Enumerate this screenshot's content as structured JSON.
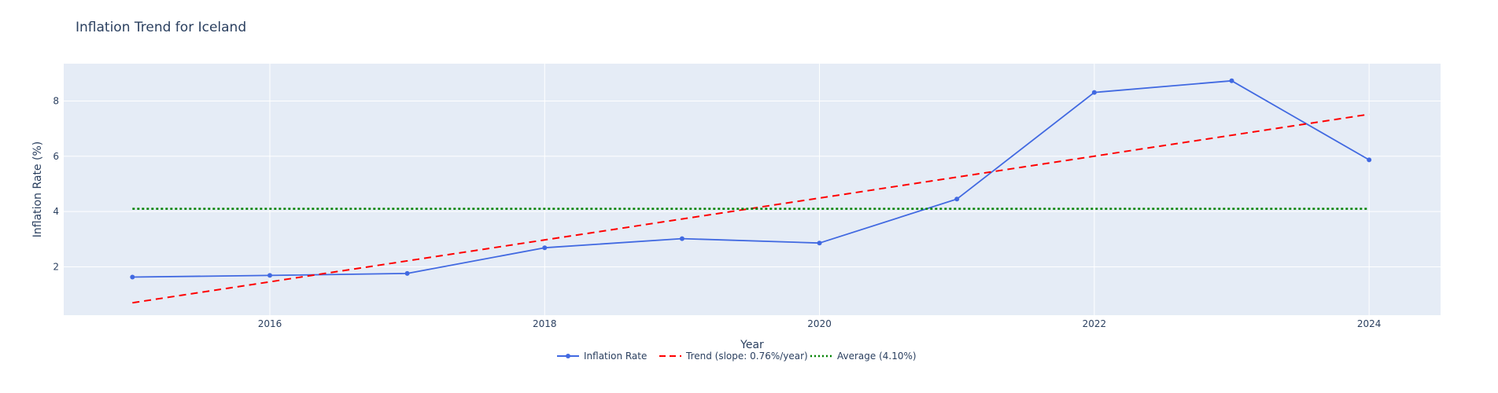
{
  "chart_data": {
    "type": "line",
    "title": "Inflation Trend for Iceland",
    "xlabel": "Year",
    "ylabel": "Inflation Rate (%)",
    "xlim": [
      2014.5,
      2024.52
    ],
    "ylim": [
      0.25,
      9.35
    ],
    "x_ticks": [
      2016,
      2018,
      2020,
      2022,
      2024
    ],
    "y_ticks": [
      2,
      4,
      6,
      8
    ],
    "grid": true,
    "legend_position": "bottom-center",
    "colors": {
      "plot_bg": "#E5ECF6",
      "grid": "#ffffff",
      "text": "#2a3f5f",
      "inflation": "#4169E1",
      "trend": "#FF0000",
      "average": "#008000"
    },
    "series": [
      {
        "name": "Inflation Rate",
        "style": "line+markers",
        "x": [
          2015,
          2016,
          2017,
          2018,
          2019,
          2020,
          2021,
          2022,
          2023,
          2024
        ],
        "y": [
          1.63,
          1.69,
          1.76,
          2.69,
          3.02,
          2.86,
          4.45,
          8.31,
          8.73,
          5.87
        ]
      },
      {
        "name": "Trend (slope: 0.76%/year)",
        "style": "dash",
        "x": [
          2015,
          2024
        ],
        "y": [
          0.7,
          7.52
        ]
      },
      {
        "name": "Average (4.10%)",
        "style": "dot",
        "x": [
          2015,
          2024
        ],
        "y": [
          4.1,
          4.1
        ]
      }
    ]
  }
}
